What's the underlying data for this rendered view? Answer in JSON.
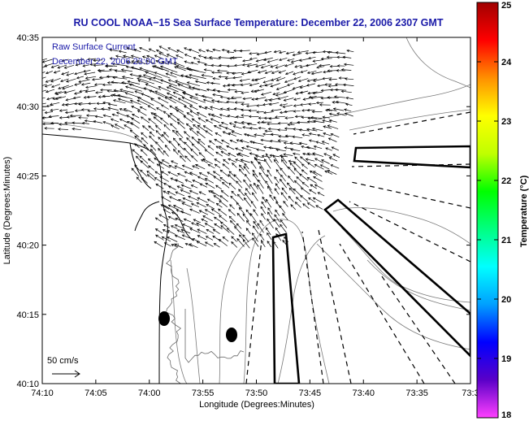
{
  "title": "RU COOL  NOAA−15  Sea Surface Temperature:  December 22, 2006 2307 GMT",
  "legend": {
    "line1": "Raw Surface Current",
    "line2": "December 22, 2006 23:00 GMT"
  },
  "scale_arrow_label": "50 cm/s",
  "axes": {
    "xlabel": "Longitude (Degrees:Minutes)",
    "ylabel": "Latitude (Degrees:Minutes)",
    "x_ticks": [
      "74:10",
      "74:05",
      "74:00",
      "73:55",
      "73:50",
      "73:45",
      "73:40",
      "73:35",
      "73:3"
    ],
    "y_ticks": [
      "40:35",
      "40:30",
      "40:25",
      "40:20",
      "40:15",
      "40:10"
    ]
  },
  "colorbar": {
    "label": "Temperature (°C)",
    "ticks": [
      "25",
      "24",
      "23",
      "22",
      "21",
      "20",
      "19",
      "18"
    ],
    "min": 18,
    "max": 25,
    "colors": [
      "#ff40ff",
      "#5a00c8",
      "#0000ff",
      "#00a0ff",
      "#00ffff",
      "#00ff80",
      "#00ff00",
      "#c0ff00",
      "#ffff00",
      "#ff9000",
      "#ff0000",
      "#a00000"
    ]
  },
  "chart_data": {
    "type": "map",
    "xlim": [
      "74:10",
      "73:30"
    ],
    "ylim": [
      "40:10",
      "40:35"
    ],
    "markers": [
      {
        "name": "",
        "lon": "74:00.8",
        "lat": "40:14.5"
      },
      {
        "name": "",
        "lon": "73:57.4",
        "lat": "40:13.5"
      }
    ]
  }
}
